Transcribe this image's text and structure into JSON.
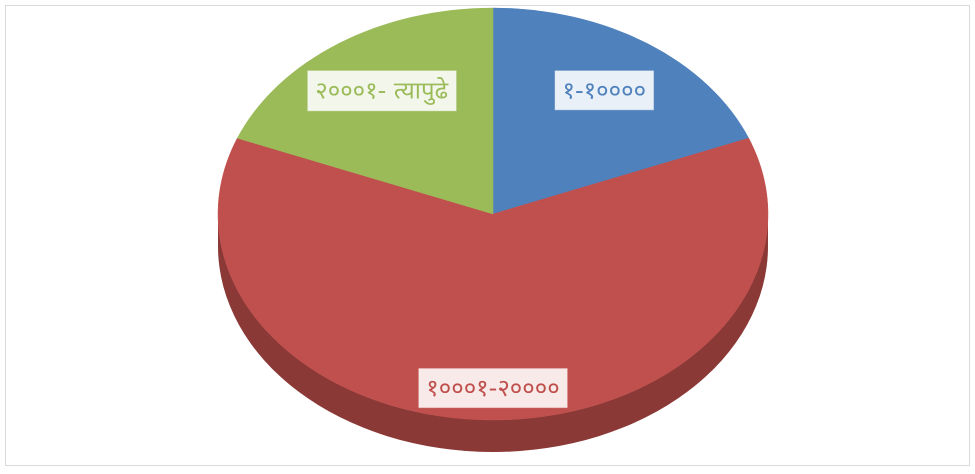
{
  "chart_data": {
    "type": "pie",
    "categories": [
      "१-१००००",
      "१०००१-२००००",
      "२०००१- त्यापुढे"
    ],
    "values": [
      19,
      62,
      19
    ],
    "colors": [
      "#4f81bd",
      "#c0504d",
      "#9bbb59"
    ],
    "start_angle": "top",
    "direction": "clockwise",
    "three_d": true
  }
}
